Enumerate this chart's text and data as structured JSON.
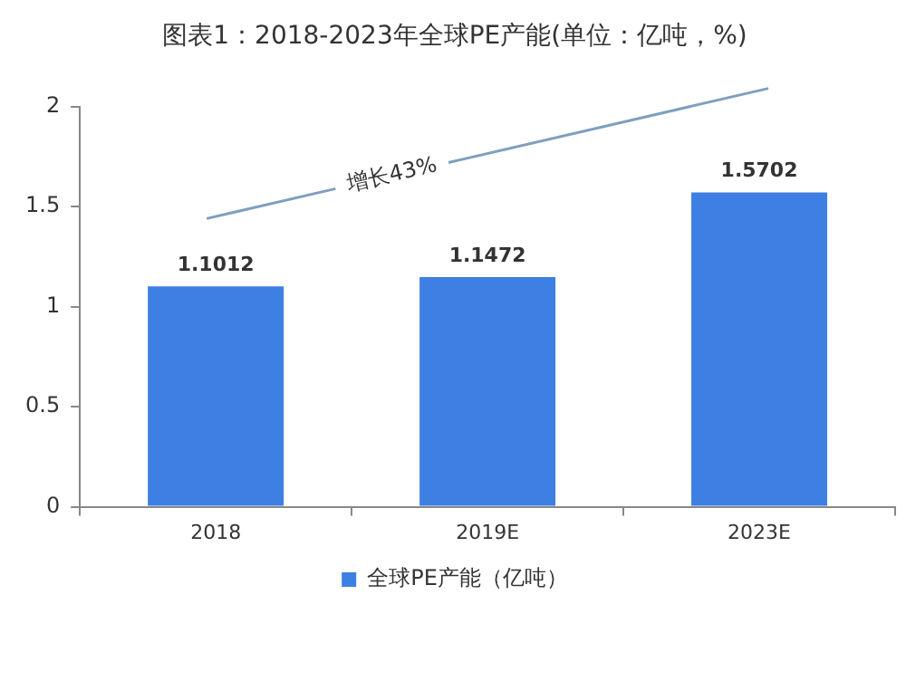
{
  "chart_data": {
    "type": "bar",
    "title": "图表1：2018-2023年全球PE产能(单位：亿吨，%)",
    "categories": [
      "2018",
      "2019E",
      "2023E"
    ],
    "series": [
      {
        "name": "全球PE产能（亿吨）",
        "color": "#3d7fe3",
        "values": [
          1.1012,
          1.1472,
          1.5702
        ]
      }
    ],
    "ylim": [
      0,
      2
    ],
    "yticks": [
      0,
      0.5,
      1,
      1.5,
      2
    ],
    "grid": false,
    "legend": "bottom",
    "data_labels": true,
    "annotations": [
      "增长43%"
    ]
  }
}
